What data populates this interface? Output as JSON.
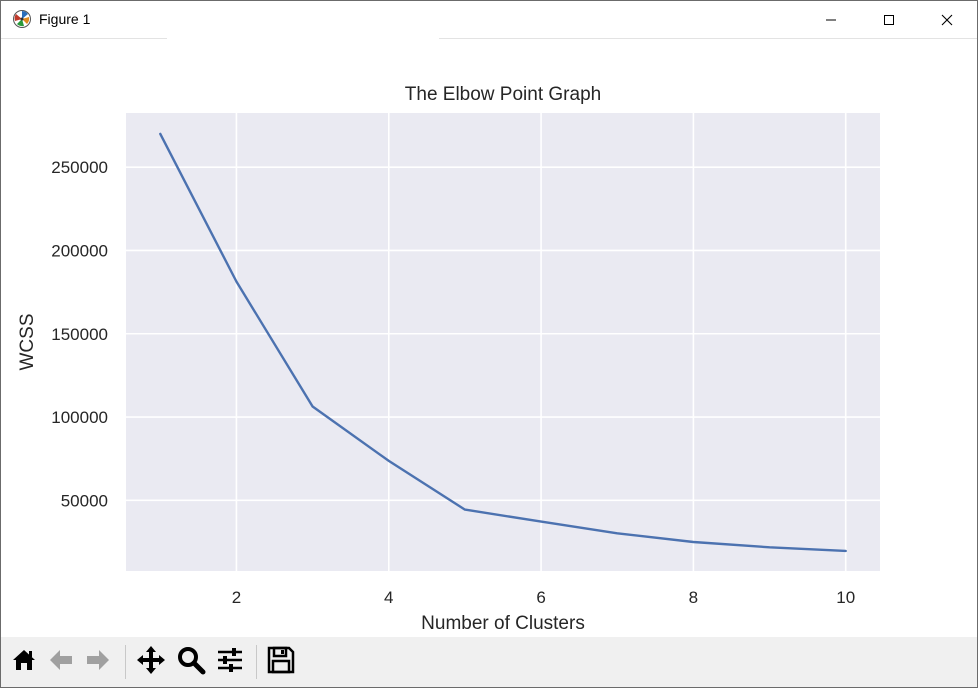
{
  "window": {
    "title": "Figure 1",
    "icons": {
      "app": "matplotlib-icon",
      "minimize": "minimize-icon",
      "maximize": "maximize-icon",
      "close": "close-icon"
    }
  },
  "toolbar": {
    "buttons": [
      {
        "name": "home-button",
        "icon": "home-icon"
      },
      {
        "name": "back-button",
        "icon": "arrow-left-icon"
      },
      {
        "name": "forward-button",
        "icon": "arrow-right-icon"
      },
      {
        "name": "pan-button",
        "icon": "move-icon"
      },
      {
        "name": "zoom-button",
        "icon": "magnifier-icon"
      },
      {
        "name": "configure-subplots-button",
        "icon": "sliders-icon"
      },
      {
        "name": "save-button",
        "icon": "floppy-disk-icon"
      }
    ]
  },
  "chart_data": {
    "type": "line",
    "title": "The Elbow Point Graph",
    "xlabel": "Number of Clusters",
    "ylabel": "WCSS",
    "x": [
      1,
      2,
      3,
      4,
      5,
      6,
      7,
      8,
      9,
      10
    ],
    "series": [
      {
        "values": [
          269981,
          181364,
          106349,
          73679,
          44448,
          37233,
          30228,
          25012,
          21851,
          19672
        ]
      }
    ],
    "xlim": [
      0.55,
      10.45
    ],
    "ylim": [
      7600,
      282500
    ],
    "xticks": [
      2,
      4,
      6,
      8,
      10
    ],
    "xtick_labels": [
      "2",
      "4",
      "6",
      "8",
      "10"
    ],
    "yticks": [
      50000,
      100000,
      150000,
      200000,
      250000
    ],
    "ytick_labels": [
      "50000",
      "100000",
      "150000",
      "200000",
      "250000"
    ],
    "grid": true,
    "colors": {
      "axes_background": "#eaeaf2",
      "grid": "#ffffff",
      "line": "#4c72b0",
      "text": "#262626"
    }
  }
}
